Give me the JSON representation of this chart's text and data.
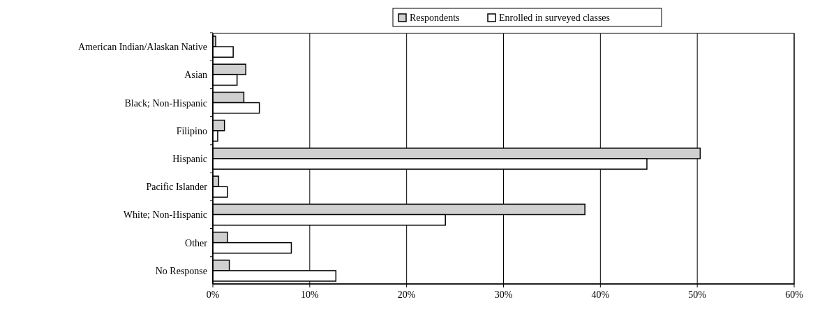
{
  "chart_data": {
    "type": "bar",
    "orientation": "horizontal",
    "categories": [
      "American Indian/Alaskan Native",
      "Asian",
      "Black; Non-Hispanic",
      "Filipino",
      "Hispanic",
      "Pacific Islander",
      "White; Non-Hispanic",
      "Other",
      "No Response"
    ],
    "series": [
      {
        "name": "Respondents",
        "color": "#d0d0d0",
        "values": [
          0.3,
          3.4,
          3.2,
          1.2,
          50.3,
          0.6,
          38.4,
          1.5,
          1.7
        ]
      },
      {
        "name": "Enrolled in surveyed classes",
        "color": "#ffffff",
        "values": [
          2.1,
          2.5,
          4.8,
          0.5,
          44.8,
          1.5,
          24.0,
          8.1,
          12.7
        ]
      }
    ],
    "xlim": [
      0,
      60
    ],
    "xticks": [
      {
        "value": 0,
        "label": "0%"
      },
      {
        "value": 10,
        "label": "10%"
      },
      {
        "value": 20,
        "label": "20%"
      },
      {
        "value": 30,
        "label": "30%"
      },
      {
        "value": 40,
        "label": "40%"
      },
      {
        "value": 50,
        "label": "50%"
      },
      {
        "value": 60,
        "label": "60%"
      }
    ],
    "grid": "x",
    "legend": "top right"
  }
}
